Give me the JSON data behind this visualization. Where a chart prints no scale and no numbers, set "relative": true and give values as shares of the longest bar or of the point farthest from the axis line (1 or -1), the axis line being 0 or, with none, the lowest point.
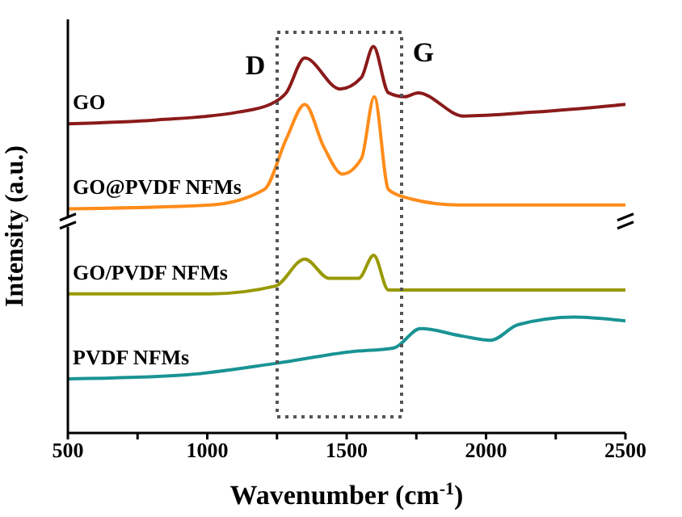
{
  "chart_data": {
    "type": "line",
    "relative": true,
    "xlabel": "Wavenumber (cm$^{-1}$)",
    "ylabel": "Intensity (a.u.)",
    "xlim": [
      500,
      2500
    ],
    "xticks": [
      500,
      {
        "value": 750,
        "label": null
      },
      1000,
      {
        "value": 1250,
        "label": null
      },
      1500,
      {
        "value": 1750,
        "label": null
      },
      2000,
      {
        "value": 2250,
        "label": null
      },
      2500
    ],
    "marker": "none",
    "line_style": "solid",
    "annotations": [
      "D",
      "G"
    ],
    "series": [
      {
        "name": "GO",
        "color": "#8b1a1a",
        "x": [
          500,
          819,
          1109,
          1225,
          1283,
          1350,
          1476,
          1553,
          1596,
          1650,
          1708,
          1756,
          1920,
          2171,
          2500
        ],
        "values": [
          0.8,
          0.81,
          0.83,
          0.85,
          0.88,
          0.97,
          0.89,
          0.92,
          1.0,
          0.88,
          0.87,
          0.88,
          0.82,
          0.83,
          0.85
        ]
      },
      {
        "name": "GO@PVDF NFMs",
        "color": "#ff8c1a",
        "x": [
          500,
          1012,
          1205,
          1283,
          1350,
          1418,
          1485,
          1553,
          1599,
          1650,
          1708,
          1901,
          2500
        ],
        "values": [
          0.58,
          0.59,
          0.63,
          0.76,
          0.85,
          0.74,
          0.67,
          0.71,
          0.87,
          0.63,
          0.61,
          0.59,
          0.59
        ]
      },
      {
        "name": "GO/PVDF NFMs",
        "color": "#999900",
        "x": [
          500,
          1012,
          1244,
          1350,
          1437,
          1543,
          1597,
          1650,
          1978,
          2500
        ],
        "values": [
          0.36,
          0.36,
          0.38,
          0.45,
          0.4,
          0.4,
          0.46,
          0.37,
          0.37,
          0.37
        ]
      },
      {
        "name": "PVDF NFMs",
        "color": "#1a9393",
        "x": [
          500,
          915,
          1244,
          1514,
          1669,
          1765,
          1920,
          2017,
          2114,
          2316,
          2500
        ],
        "values": [
          0.14,
          0.15,
          0.18,
          0.21,
          0.22,
          0.27,
          0.25,
          0.24,
          0.28,
          0.3,
          0.29
        ]
      }
    ]
  }
}
